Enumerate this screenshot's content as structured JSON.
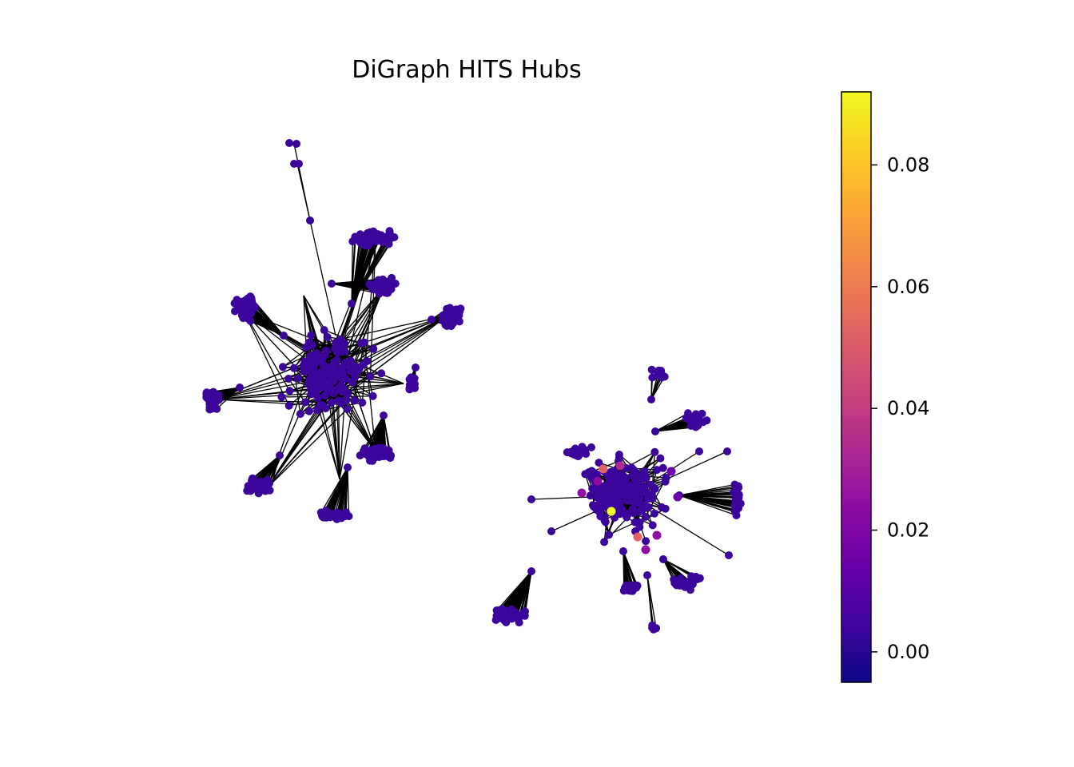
{
  "chart_data": {
    "type": "network",
    "title": "DiGraph HITS Hubs",
    "metric": "HITS hub score",
    "colormap": "plasma",
    "colorbar": {
      "range": [
        -0.005,
        0.092
      ],
      "ticks": [
        0.0,
        0.02,
        0.04,
        0.06,
        0.08
      ],
      "tick_labels": [
        "0.00",
        "0.02",
        "0.04",
        "0.06",
        "0.08"
      ]
    },
    "components": [
      {
        "name": "left component",
        "typical_hub_score": 0.0,
        "max_hub_score": 0.0
      },
      {
        "name": "right component",
        "typical_hub_score": 0.0,
        "notable_hub_scores": [
          0.092,
          0.058,
          0.057,
          0.03,
          0.028,
          0.025,
          0.022,
          0.02,
          0.018,
          0.015
        ]
      }
    ],
    "node_color_default": "#3b049a",
    "edge_color": "#000000"
  }
}
